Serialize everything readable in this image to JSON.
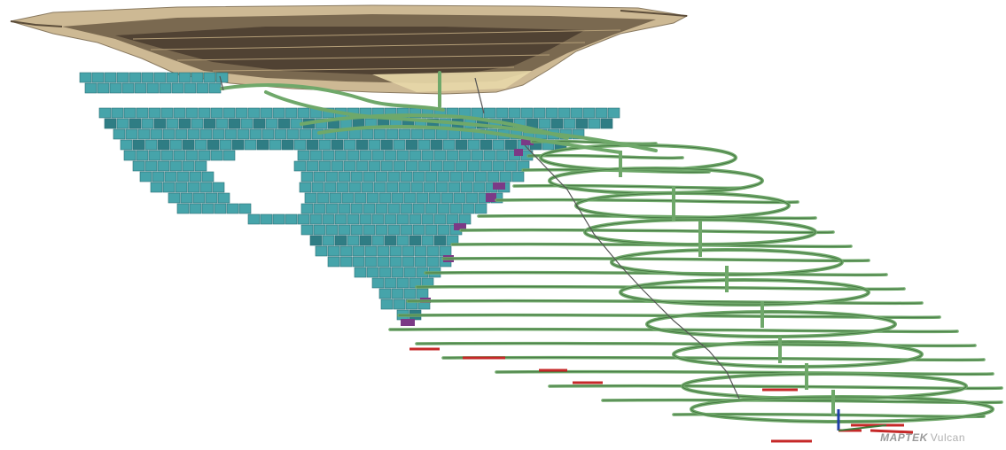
{
  "viewer": {
    "watermark_brand": "MAPTEK",
    "watermark_product": "Vulcan"
  },
  "colors": {
    "pit_surface": "#c8b592",
    "pit_shadow": "#4a3d2e",
    "stope_blocks": "#3e9aa0",
    "stope_blocks_dark": "#2f7d84",
    "development_drives": "#6fa86a",
    "development_dark": "#3f6f3c",
    "drive_ends": "#c62828",
    "purple_stopes": "#7b3a86",
    "axis_blue": "#1f3fa8",
    "shaft_line": "#555555"
  },
  "icons": [
    "open-pit-surface",
    "stope-blocks",
    "decline-ramp",
    "level-drives",
    "shaft-line",
    "axis-marker"
  ]
}
